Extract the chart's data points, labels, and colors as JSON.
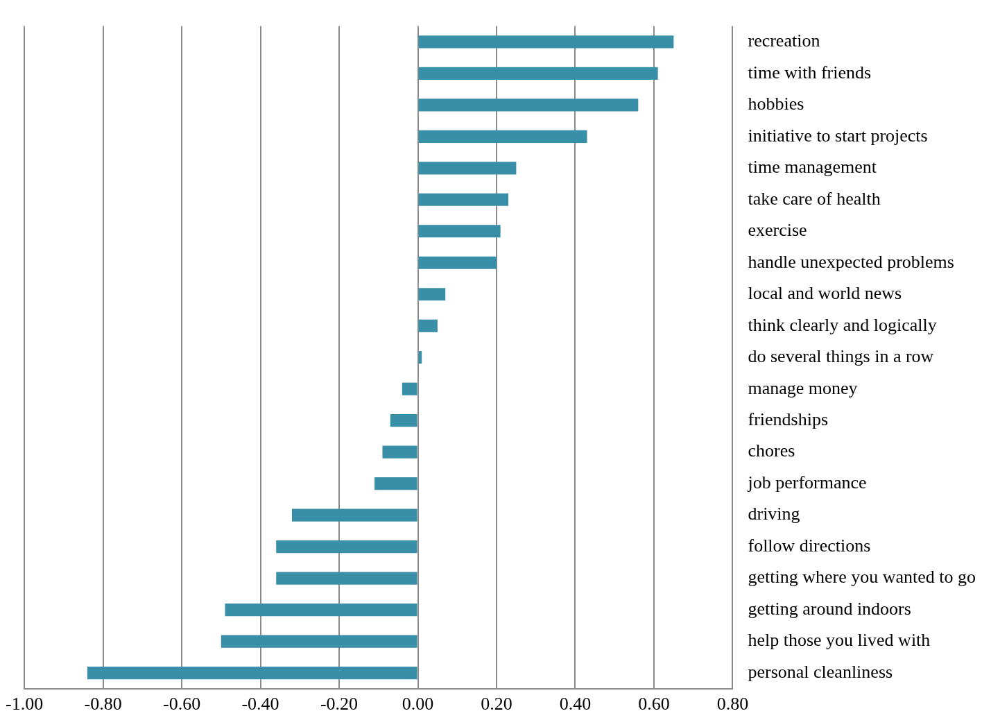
{
  "chart_data": {
    "type": "bar",
    "orientation": "horizontal",
    "categories": [
      "recreation",
      "time with friends",
      "hobbies",
      "initiative to start projects",
      "time management",
      "take care of health",
      "exercise",
      "handle unexpected problems",
      "local and world news",
      "think clearly and logically",
      "do several things in a row",
      "manage money",
      "friendships",
      "chores",
      "job performance",
      "driving",
      "follow directions",
      "getting where you wanted to go",
      "getting around indoors",
      "help those you lived with",
      "personal cleanliness"
    ],
    "values": [
      0.65,
      0.61,
      0.56,
      0.43,
      0.25,
      0.23,
      0.21,
      0.2,
      0.07,
      0.05,
      0.01,
      -0.04,
      -0.07,
      -0.09,
      -0.11,
      -0.32,
      -0.36,
      -0.36,
      -0.49,
      -0.5,
      -0.84
    ],
    "color": "#3a8fa8",
    "xlim": [
      -1.0,
      0.8
    ],
    "xticks": [
      {
        "value": -1.0,
        "label": "-1.00"
      },
      {
        "value": -0.8,
        "label": "-0.80"
      },
      {
        "value": -0.6,
        "label": "-0.60"
      },
      {
        "value": -0.4,
        "label": "-0.40"
      },
      {
        "value": -0.2,
        "label": "-0.20"
      },
      {
        "value": 0,
        "label": "0.00"
      },
      {
        "value": 0.2,
        "label": "0.20"
      },
      {
        "value": 0.4,
        "label": "0.40"
      },
      {
        "value": 0.6,
        "label": "0.60"
      },
      {
        "value": 0.8,
        "label": "0.80"
      }
    ],
    "grid": "x",
    "legend": false
  }
}
